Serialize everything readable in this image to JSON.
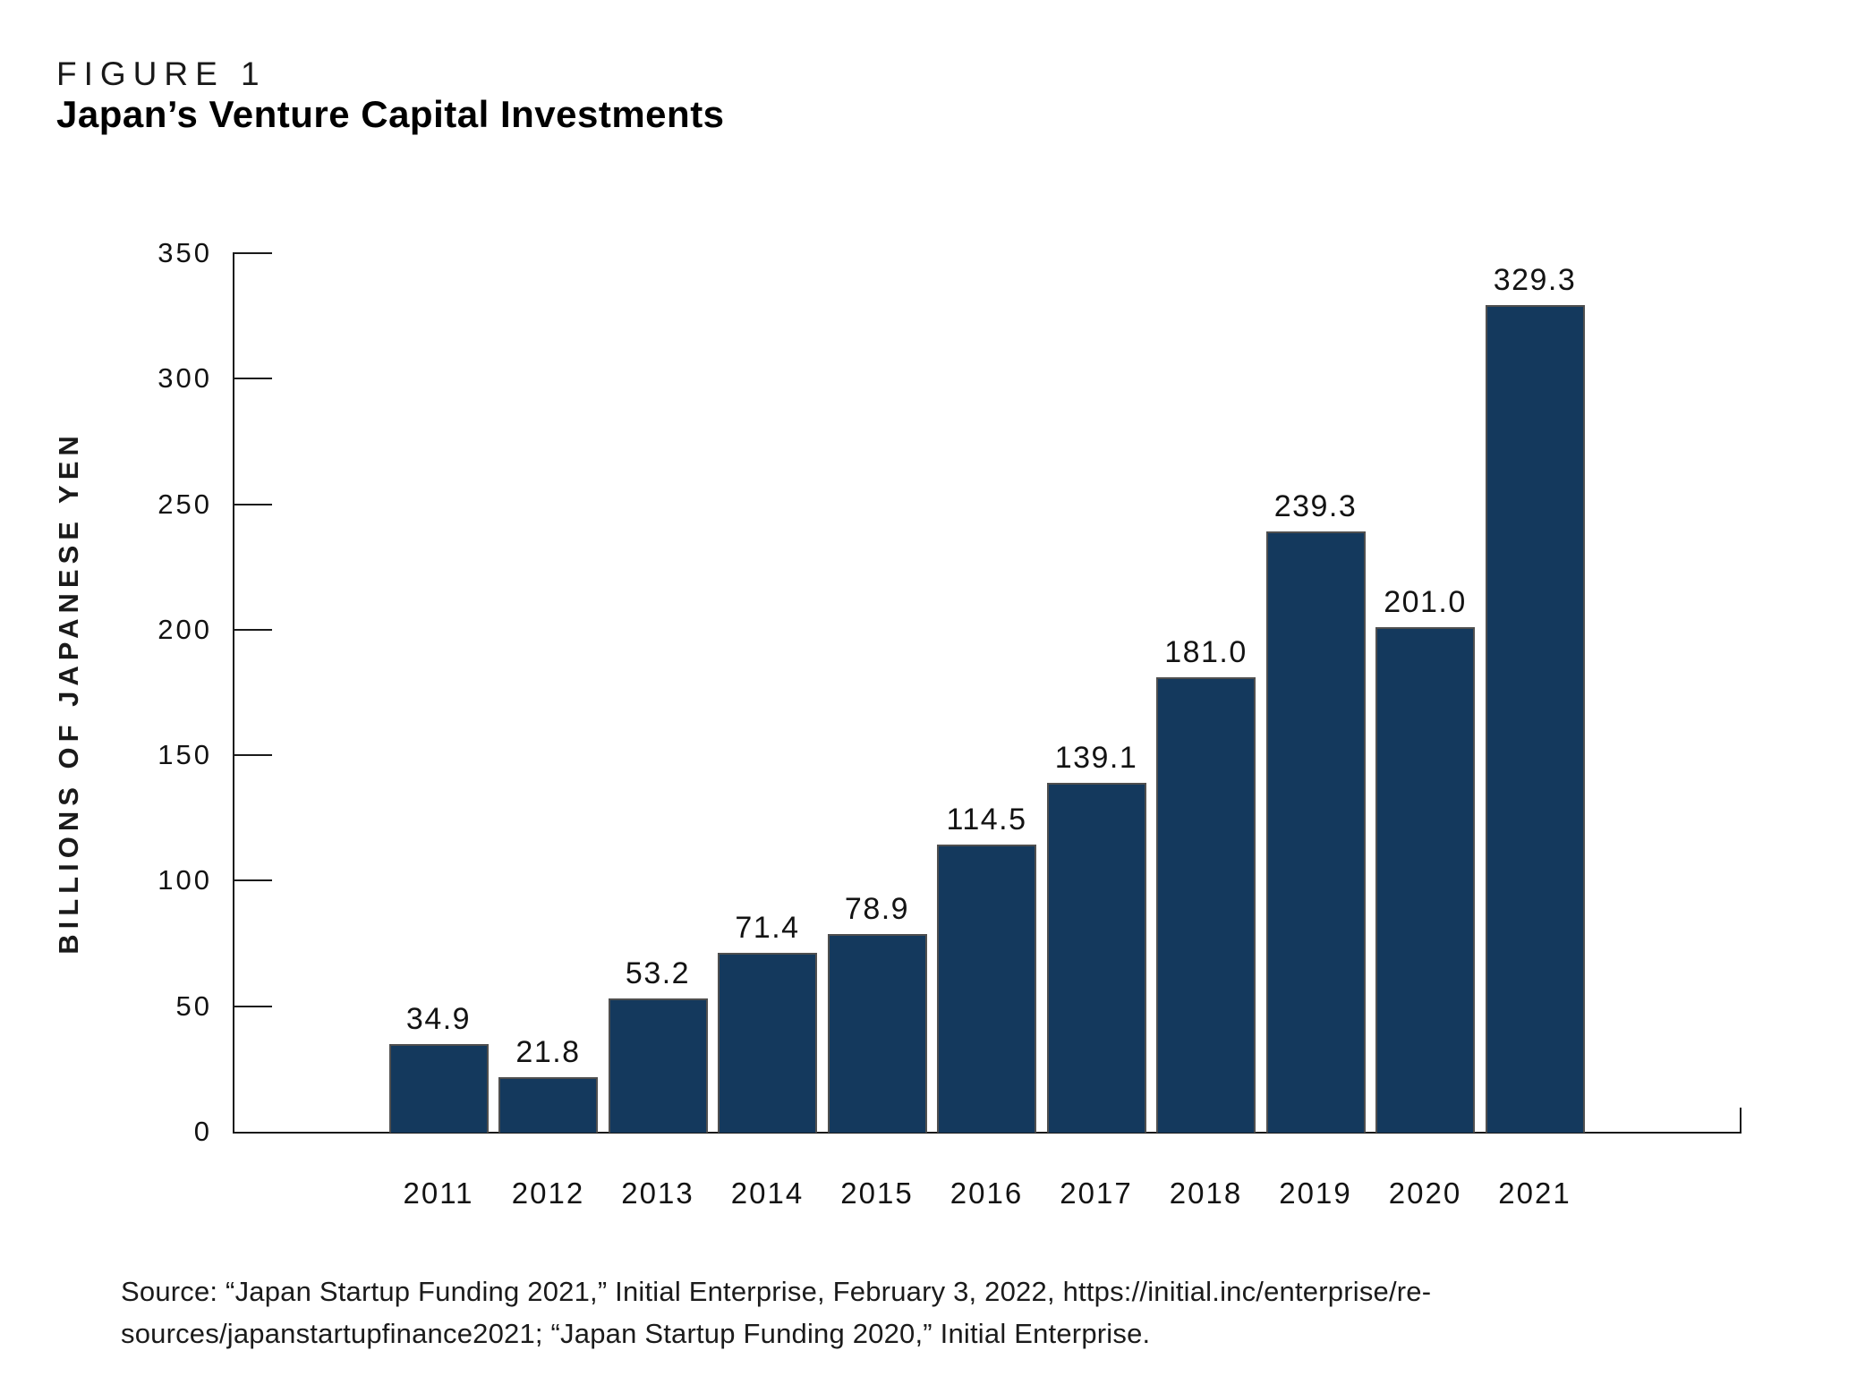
{
  "figure_label": "FIGURE 1",
  "title": "Japan’s Venture Capital Investments",
  "source": {
    "line1": "Source: “Japan Startup Funding 2021,” Initial Enterprise, February 3, 2022, https://initial.inc/enterprise/re-",
    "line2": "sources/japanstartupfinance2021; “Japan Startup Funding 2020,” Initial Enterprise."
  },
  "colors": {
    "bar_fill": "#14395D",
    "bar_border": "#4F4F4F",
    "axis": "#1A1A1A",
    "text": "#131313"
  },
  "chart_data": {
    "type": "bar",
    "categories": [
      "2011",
      "2012",
      "2013",
      "2014",
      "2015",
      "2016",
      "2017",
      "2018",
      "2019",
      "2020",
      "2021"
    ],
    "values": [
      34.9,
      21.8,
      53.2,
      71.4,
      78.9,
      114.5,
      139.1,
      181.0,
      239.3,
      201.0,
      329.3
    ],
    "value_labels": [
      "34.9",
      "21.8",
      "53.2",
      "71.4",
      "78.9",
      "114.5",
      "139.1",
      "181.0",
      "239.3",
      "201.0",
      "329.3"
    ],
    "title": "Japan’s Venture Capital Investments",
    "xlabel": "",
    "ylabel": "BILLIONS OF JAPANESE YEN",
    "ylim": [
      0,
      350
    ],
    "yticks": [
      0,
      50,
      100,
      150,
      200,
      250,
      300,
      350
    ],
    "grid": false,
    "legend": false,
    "bar_value_labels_position": "above"
  }
}
